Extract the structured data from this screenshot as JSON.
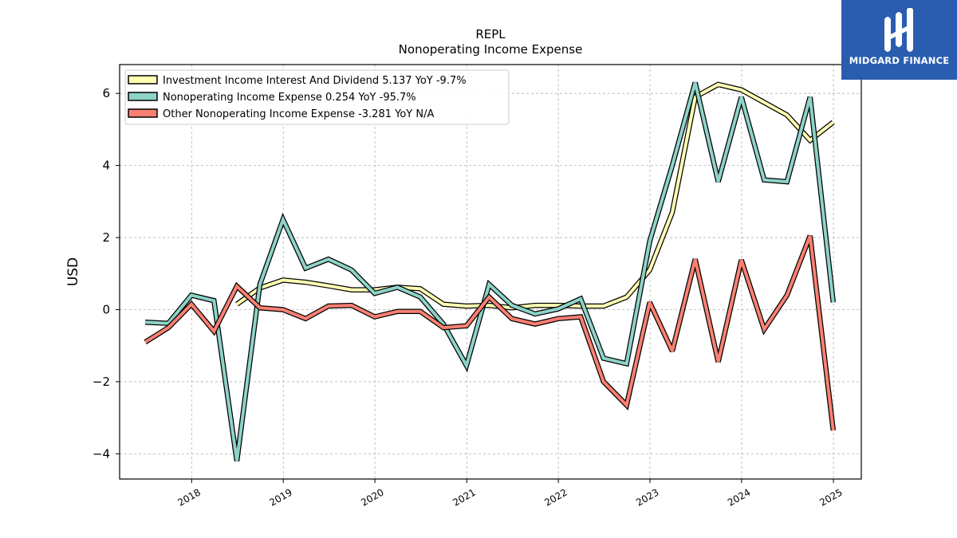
{
  "chart_data": {
    "type": "line",
    "title": "REPL",
    "subtitle": "Nonoperating Income Expense",
    "xlabel": "",
    "ylabel": "USD",
    "ylim": [
      -4.7,
      6.8
    ],
    "yticks": [
      -4,
      -2,
      0,
      2,
      4,
      6
    ],
    "ytick_labels": [
      "−4",
      "−2",
      "0",
      "2",
      "4",
      "6"
    ],
    "xticks": [
      "2018",
      "2019",
      "2020",
      "2021",
      "2022",
      "2023",
      "2024",
      "2025"
    ],
    "grid": true,
    "legend_position": "top-left",
    "x": [
      "2017-06-30",
      "2017-09-30",
      "2017-12-31",
      "2018-03-31",
      "2018-06-30",
      "2018-09-30",
      "2018-12-31",
      "2019-03-31",
      "2019-06-30",
      "2019-09-30",
      "2019-12-31",
      "2020-03-31",
      "2020-06-30",
      "2020-09-30",
      "2020-12-31",
      "2021-03-31",
      "2021-06-30",
      "2021-09-30",
      "2021-12-31",
      "2022-03-31",
      "2022-06-30",
      "2022-09-30",
      "2022-12-31",
      "2023-03-31",
      "2023-06-30",
      "2023-09-30",
      "2023-12-31",
      "2024-03-31",
      "2024-06-30",
      "2024-09-30",
      "2024-12-31"
    ],
    "series": [
      {
        "name": "Investment Income Interest And Dividend",
        "legend_label": "Investment Income Interest And Dividend  5.137 YoY -9.7%",
        "color": "#ffffb3",
        "values": [
          null,
          null,
          null,
          null,
          0.15,
          0.6,
          0.82,
          0.76,
          0.66,
          0.55,
          0.55,
          0.62,
          0.58,
          0.15,
          0.1,
          0.12,
          0.05,
          0.12,
          0.12,
          0.1,
          0.1,
          0.35,
          1.1,
          2.7,
          5.9,
          6.25,
          6.1,
          5.75,
          5.4,
          4.7,
          5.2
        ]
      },
      {
        "name": "Nonoperating Income Expense",
        "legend_label": "Nonoperating Income Expense  0.254 YoY -95.7%",
        "color": "#8dd3c7",
        "values": [
          -0.35,
          -0.38,
          0.4,
          0.25,
          -4.2,
          0.7,
          2.5,
          1.15,
          1.4,
          1.1,
          0.45,
          0.62,
          0.35,
          -0.4,
          -1.55,
          0.7,
          0.12,
          -0.12,
          0.02,
          0.3,
          -1.35,
          -1.5,
          1.9,
          4.0,
          6.3,
          3.55,
          5.9,
          3.6,
          3.55,
          5.9,
          0.2
        ]
      },
      {
        "name": "Other Nonoperating Income Expense",
        "legend_label": "Other Nonoperating Income Expense  -3.281 YoY N/A",
        "color": "#fb8072",
        "values": [
          -0.9,
          -0.5,
          0.15,
          -0.6,
          0.65,
          0.05,
          0.0,
          -0.25,
          0.1,
          0.12,
          -0.2,
          -0.05,
          -0.05,
          -0.5,
          -0.45,
          0.35,
          -0.25,
          -0.4,
          -0.25,
          -0.2,
          -2.0,
          -2.65,
          0.2,
          -1.15,
          1.4,
          -1.45,
          1.38,
          -0.55,
          0.4,
          2.05,
          -3.35
        ]
      }
    ]
  },
  "logo": {
    "text": "MIDGARD FINANCE",
    "background": "#2a5db0"
  }
}
